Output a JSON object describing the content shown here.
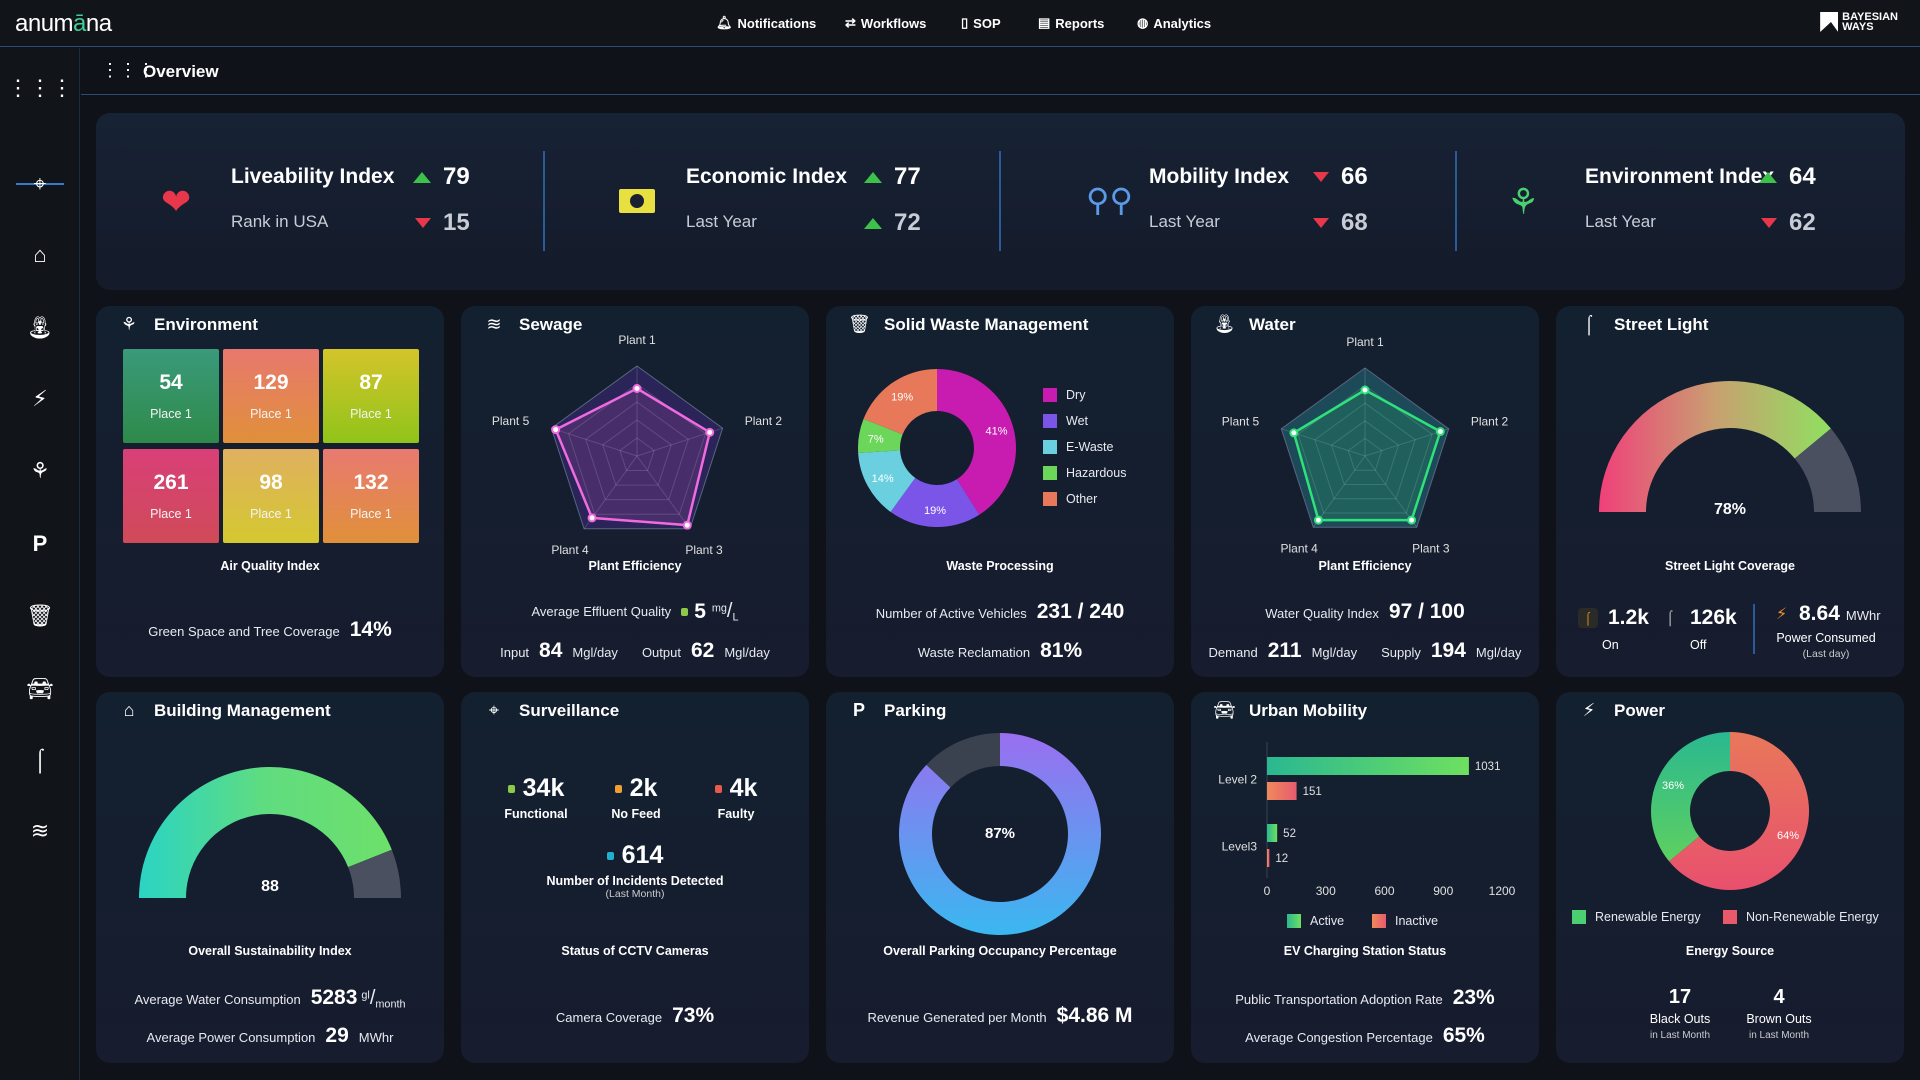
{
  "app": {
    "logo": "anumāna",
    "logo_parts": [
      "anum",
      "ā",
      "na"
    ],
    "brand": [
      "BAYESIAN",
      "WAYS"
    ]
  },
  "nav": [
    {
      "label": "Notifications",
      "icon": "bell-icon"
    },
    {
      "label": "Workflows",
      "icon": "workflow-icon"
    },
    {
      "label": "SOP",
      "icon": "document-icon"
    },
    {
      "label": "Reports",
      "icon": "report-icon"
    },
    {
      "label": "Analytics",
      "icon": "analytics-icon"
    }
  ],
  "sidebar": [
    "grid-icon",
    "surveillance-icon",
    "building-icon",
    "water-icon",
    "power-icon",
    "environment-icon",
    "parking-icon",
    "waste-icon",
    "mobility-icon",
    "streetlight-icon",
    "sewage-icon"
  ],
  "page": {
    "title": "Overview"
  },
  "kpis": [
    {
      "title": "Liveability Index",
      "value": "79",
      "trend": "up",
      "sub": "Rank in USA",
      "sub_value": "15",
      "sub_trend": "down",
      "icon": "heart-icon"
    },
    {
      "title": "Economic Index",
      "value": "77",
      "trend": "up",
      "sub": "Last Year",
      "sub_value": "72",
      "sub_trend": "up",
      "icon": "money-icon"
    },
    {
      "title": "Mobility Index",
      "value": "66",
      "trend": "down",
      "sub": "Last Year",
      "sub_value": "68",
      "sub_trend": "down",
      "icon": "route-icon"
    },
    {
      "title": "Environment Index",
      "value": "64",
      "trend": "up",
      "sub": "Last Year",
      "sub_value": "62",
      "sub_trend": "down",
      "icon": "plant-icon"
    }
  ],
  "environment": {
    "title": "Environment",
    "tiles": [
      {
        "value": "54",
        "label": "Place 1",
        "color": [
          "#3a9a7a",
          "#2e8a4a"
        ]
      },
      {
        "value": "129",
        "label": "Place 1",
        "color": [
          "#e8786e",
          "#e0903a"
        ]
      },
      {
        "value": "87",
        "label": "Place 1",
        "color": [
          "#d4c42a",
          "#90c41a"
        ]
      },
      {
        "value": "261",
        "label": "Place 1",
        "color": [
          "#d84078",
          "#d04a58"
        ]
      },
      {
        "value": "98",
        "label": "Place 1",
        "color": [
          "#e0b060",
          "#d4c830"
        ]
      },
      {
        "value": "132",
        "label": "Place 1",
        "color": [
          "#e87a70",
          "#e0903a"
        ]
      }
    ],
    "caption": "Air Quality Index",
    "green_label": "Green Space and Tree Coverage",
    "green_value": "14%"
  },
  "sewage": {
    "title": "Sewage",
    "caption": "Plant Efficiency",
    "effluent_label": "Average Effluent Quality",
    "effluent_value": "5",
    "effluent_unit_top": "mg",
    "effluent_unit_bottom": "L",
    "input_label": "Input",
    "input_value": "84",
    "output_label": "Output",
    "output_value": "62",
    "unit": "Mgl/day"
  },
  "waste": {
    "title": "Solid Waste Management",
    "caption": "Waste Processing",
    "vehicles_label": "Number of Active Vehicles",
    "vehicles_value": "231 / 240",
    "reclamation_label": "Waste Reclamation",
    "reclamation_value": "81%"
  },
  "water": {
    "title": "Water",
    "caption": "Plant Efficiency",
    "wqi_label": "Water Quality Index",
    "wqi_value": "97 / 100",
    "demand_label": "Demand",
    "demand_value": "211",
    "supply_label": "Supply",
    "supply_value": "194",
    "unit": "Mgl/day"
  },
  "streetlight": {
    "title": "Street Light",
    "caption": "Street Light Coverage",
    "coverage": 78,
    "coverage_label": "78%",
    "on_value": "1.2k",
    "on_label": "On",
    "off_value": "126k",
    "off_label": "Off",
    "power_value": "8.64",
    "power_unit": "MWhr",
    "power_label": "Power Consumed",
    "power_sub": "(Last day)"
  },
  "building": {
    "title": "Building Management",
    "caption": "Overall Sustainability Index",
    "index": 88,
    "index_label": "88",
    "water_label": "Average Water Consumption",
    "water_value": "5283",
    "water_unit_top": "gl",
    "water_unit_bottom": "month",
    "power_label": "Average Power Consumption",
    "power_value": "29",
    "power_unit": "MWhr"
  },
  "surveillance": {
    "title": "Surveillance",
    "stats": [
      {
        "value": "34k",
        "label": "Functional",
        "color": "#8cc84a"
      },
      {
        "value": "2k",
        "label": "No Feed",
        "color": "#f0a030"
      },
      {
        "value": "4k",
        "label": "Faulty",
        "color": "#e85a4a"
      }
    ],
    "incidents_value": "614",
    "incidents_color": "#20b0d0",
    "incidents_label": "Number of Incidents Detected",
    "incidents_sub": "(Last Month)",
    "caption": "Status of CCTV Cameras",
    "coverage_label": "Camera Coverage",
    "coverage_value": "73%"
  },
  "parking": {
    "title": "Parking",
    "occupancy": 87,
    "occupancy_label": "87%",
    "caption": "Overall Parking Occupancy Percentage",
    "revenue_label": "Revenue Generated per Month",
    "revenue_value": "$4.86 M"
  },
  "mobility": {
    "title": "Urban Mobility",
    "caption": "EV Charging Station Status",
    "adoption_label": "Public Transportation Adoption Rate",
    "adoption_value": "23%",
    "congestion_label": "Average Congestion Percentage",
    "congestion_value": "65%",
    "legend": [
      "Active",
      "Inactive"
    ]
  },
  "power": {
    "title": "Power",
    "caption": "Energy Source",
    "legend": [
      "Renewable Energy",
      "Non-Renewable Energy"
    ],
    "blackouts_value": "17",
    "blackouts_label": "Black Outs",
    "blackouts_sub": "in Last Month",
    "brownouts_value": "4",
    "brownouts_label": "Brown Outs",
    "brownouts_sub": "in Last Month"
  },
  "chart_data": [
    {
      "type": "radar",
      "id": "sewage",
      "axes": [
        "Plant 1",
        "Plant 2",
        "Plant 3",
        "Plant 4",
        "Plant 5"
      ],
      "values": [
        0.75,
        0.85,
        0.95,
        0.85,
        0.95
      ],
      "color": "#f06ae0"
    },
    {
      "type": "pie",
      "id": "waste",
      "categories": [
        "Dry",
        "Wet",
        "E-Waste",
        "Hazardous",
        "Other"
      ],
      "values": [
        41,
        19,
        14,
        7,
        19
      ],
      "labels": [
        "41%",
        "19%",
        "14%",
        "7%",
        "19%"
      ],
      "colors": [
        "#c81cb0",
        "#7a55e8",
        "#6ad0e0",
        "#6cd65a",
        "#e8785a"
      ],
      "legend": "right"
    },
    {
      "type": "radar",
      "id": "water",
      "axes": [
        "Plant 1",
        "Plant 2",
        "Plant 3",
        "Plant 4",
        "Plant 5"
      ],
      "values": [
        0.75,
        0.9,
        0.9,
        0.9,
        0.85
      ],
      "color": "#30e07a"
    },
    {
      "type": "bar",
      "id": "ev",
      "orientation": "horizontal",
      "categories": [
        "Level 2",
        "Level3"
      ],
      "series": [
        {
          "name": "Active",
          "values": [
            1031,
            52
          ]
        },
        {
          "name": "Inactive",
          "values": [
            151,
            12
          ]
        }
      ],
      "xlim": [
        0,
        1200
      ],
      "xticks": [
        0,
        300,
        600,
        900,
        1200
      ],
      "legend": "bottom"
    },
    {
      "type": "pie",
      "id": "power",
      "categories": [
        "Renewable Energy",
        "Non-Renewable Energy"
      ],
      "values": [
        36,
        64
      ],
      "labels": [
        "36%",
        "64%"
      ],
      "colors": [
        "#4ad070",
        "#e85a6a"
      ],
      "legend": "bottom"
    }
  ]
}
